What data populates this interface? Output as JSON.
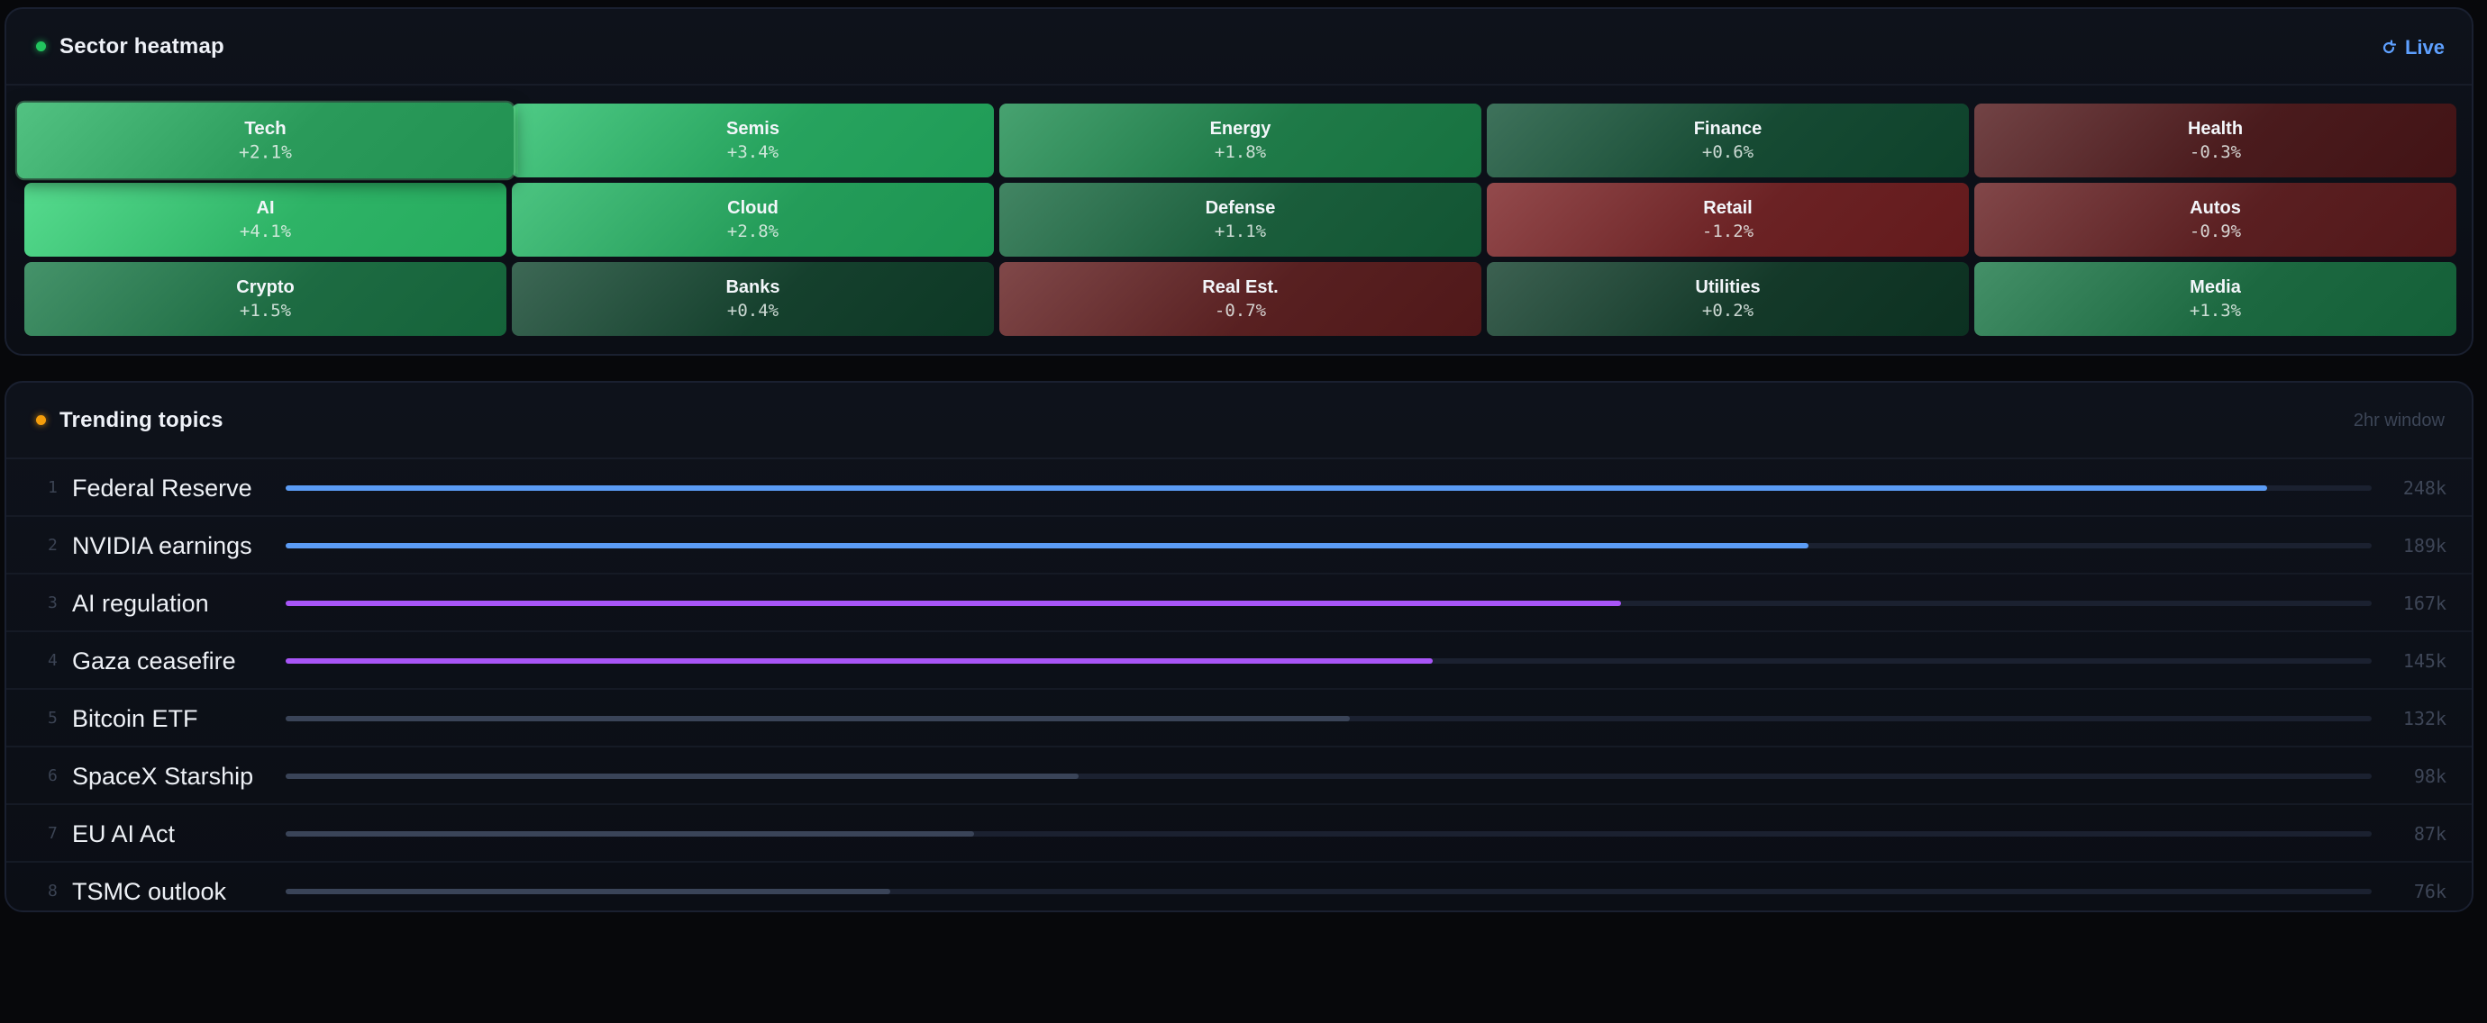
{
  "heatmap": {
    "title": "Sector heatmap",
    "live_label": "Live",
    "tiles": [
      {
        "name": "Tech",
        "change": "+2.1%",
        "color": "#2a9a5a",
        "highlighted": true
      },
      {
        "name": "Semis",
        "change": "+3.4%",
        "color": "#27a35e"
      },
      {
        "name": "Energy",
        "change": "+1.8%",
        "color": "#1f7a48"
      },
      {
        "name": "Finance",
        "change": "+0.6%",
        "color": "#164a33"
      },
      {
        "name": "Health",
        "change": "-0.3%",
        "color": "#4a1b1d"
      },
      {
        "name": "AI",
        "change": "+4.1%",
        "color": "#2eb366"
      },
      {
        "name": "Cloud",
        "change": "+2.8%",
        "color": "#249c59"
      },
      {
        "name": "Defense",
        "change": "+1.1%",
        "color": "#1a5d3b"
      },
      {
        "name": "Retail",
        "change": "-1.2%",
        "color": "#6b2224"
      },
      {
        "name": "Autos",
        "change": "-0.9%",
        "color": "#5a1f21"
      },
      {
        "name": "Crypto",
        "change": "+1.5%",
        "color": "#1d6b42"
      },
      {
        "name": "Banks",
        "change": "+0.4%",
        "color": "#15402d"
      },
      {
        "name": "Real Est.",
        "change": "-0.7%",
        "color": "#582021"
      },
      {
        "name": "Utilities",
        "change": "+0.2%",
        "color": "#143929"
      },
      {
        "name": "Media",
        "change": "+1.3%",
        "color": "#1c6840"
      }
    ]
  },
  "trending": {
    "title": "Trending topics",
    "window_label": "2hr window",
    "topics": [
      {
        "rank": "1",
        "name": "Federal Reserve",
        "count": "248k",
        "fraction": 0.95,
        "color": "#5b9cf5"
      },
      {
        "rank": "2",
        "name": "NVIDIA earnings",
        "count": "189k",
        "fraction": 0.73,
        "color": "#5b9cf5"
      },
      {
        "rank": "3",
        "name": "AI regulation",
        "count": "167k",
        "fraction": 0.64,
        "color": "#a855f7"
      },
      {
        "rank": "4",
        "name": "Gaza ceasefire",
        "count": "145k",
        "fraction": 0.55,
        "color": "#a855f7"
      },
      {
        "rank": "5",
        "name": "Bitcoin ETF",
        "count": "132k",
        "fraction": 0.51,
        "color": "#3a4458"
      },
      {
        "rank": "6",
        "name": "SpaceX Starship",
        "count": "98k",
        "fraction": 0.38,
        "color": "#3a4458"
      },
      {
        "rank": "7",
        "name": "EU AI Act",
        "count": "87k",
        "fraction": 0.33,
        "color": "#3a4458"
      },
      {
        "rank": "8",
        "name": "TSMC outlook",
        "count": "76k",
        "fraction": 0.29,
        "color": "#3a4458"
      }
    ]
  }
}
